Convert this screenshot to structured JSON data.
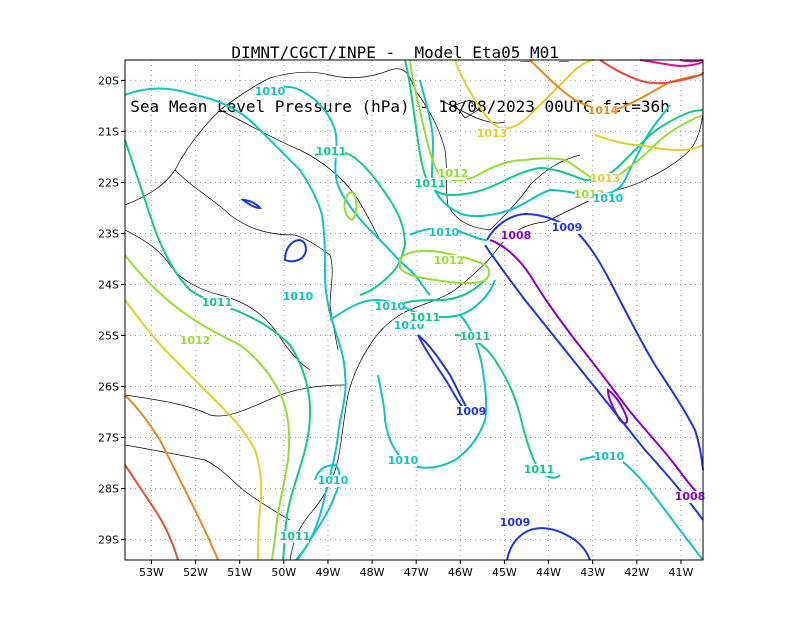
{
  "title": {
    "line1": "DIMNT/CGCT/INPE -  Model Eta05_M01_",
    "line2": "Sea Mean Level Pressure (hPa) - 18/08/2023 00UTC fct=36h"
  },
  "axes": {
    "lon_labels": [
      "53W",
      "52W",
      "51W",
      "50W",
      "49W",
      "48W",
      "47W",
      "46W",
      "45W",
      "44W",
      "43W",
      "42W",
      "41W"
    ],
    "lat_labels": [
      "20S",
      "21S",
      "22S",
      "23S",
      "24S",
      "25S",
      "26S",
      "27S",
      "28S",
      "29S"
    ],
    "lon_range": [
      -53.6,
      -40.5
    ],
    "lat_range": [
      -29.4,
      -19.6
    ]
  },
  "colors": {
    "c1008": "#8800cc",
    "c1009": "#2233dd",
    "c1010": "#11c4c0",
    "c1011": "#11c890",
    "c1012": "#99dd33",
    "c1013": "#e0d030",
    "c1014": "#e88a22",
    "c1015": "#e84a3a",
    "c1016": "#e0108a",
    "land": "#000000",
    "grid": "#999999"
  },
  "contour_labels": [
    {
      "text": "1010",
      "color": "c1010"
    },
    {
      "text": "1011",
      "color": "c1011"
    },
    {
      "text": "1011",
      "color": "c1011"
    },
    {
      "text": "1012",
      "color": "c1012"
    },
    {
      "text": "1013",
      "color": "c1013"
    },
    {
      "text": "1014",
      "color": "c1014"
    },
    {
      "text": "1013",
      "color": "c1013"
    },
    {
      "text": "1012",
      "color": "c1012"
    },
    {
      "text": "1010",
      "color": "c1010"
    },
    {
      "text": "1008",
      "color": "c1008"
    },
    {
      "text": "1009",
      "color": "c1009"
    },
    {
      "text": "1010",
      "color": "c1010"
    },
    {
      "text": "1012",
      "color": "c1012"
    },
    {
      "text": "1010",
      "color": "c1010"
    },
    {
      "text": "1011",
      "color": "c1011"
    },
    {
      "text": "1010",
      "color": "c1010"
    },
    {
      "text": "1010",
      "color": "c1010"
    },
    {
      "text": "1011",
      "color": "c1011"
    },
    {
      "text": "1011",
      "color": "c1011"
    },
    {
      "text": "1012",
      "color": "c1012"
    },
    {
      "text": "1009",
      "color": "c1009"
    },
    {
      "text": "1010",
      "color": "c1010"
    },
    {
      "text": "1011",
      "color": "c1011"
    },
    {
      "text": "1010",
      "color": "c1010"
    },
    {
      "text": "1010",
      "color": "c1010"
    },
    {
      "text": "1008",
      "color": "c1008"
    },
    {
      "text": "1011",
      "color": "c1011"
    },
    {
      "text": "1009",
      "color": "c1009"
    }
  ]
}
